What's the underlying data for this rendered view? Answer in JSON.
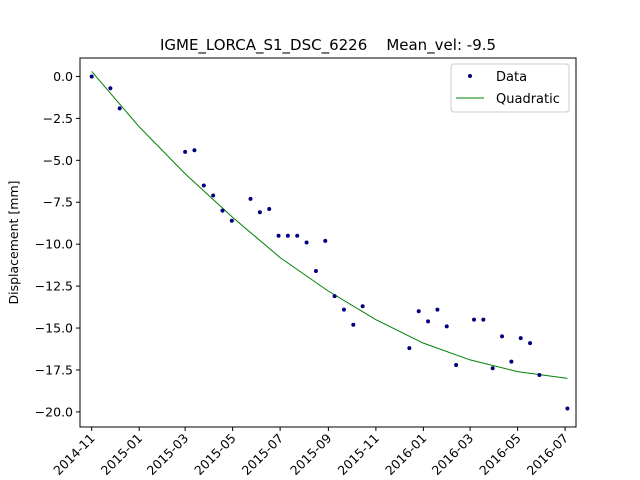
{
  "chart_data": {
    "type": "scatter",
    "title": "IGME_LORCA_S1_DSC_6226    Mean_vel: -9.5",
    "xlabel": "",
    "ylabel": "Displacement [mm]",
    "xlim": [
      "2014-10-17",
      "2016-07-15"
    ],
    "ylim": [
      -20.9,
      1.1
    ],
    "x_ticks": [
      "2014-11",
      "2015-01",
      "2015-03",
      "2015-05",
      "2015-07",
      "2015-09",
      "2015-11",
      "2016-01",
      "2016-03",
      "2016-05",
      "2016-07"
    ],
    "y_ticks": [
      0.0,
      -2.5,
      -5.0,
      -7.5,
      -10.0,
      -12.5,
      -15.0,
      -17.5,
      -20.0
    ],
    "y_tick_labels": [
      "0.0",
      "−2.5",
      "−5.0",
      "−7.5",
      "−10.0",
      "−12.5",
      "−15.0",
      "−17.5",
      "−20.0"
    ],
    "grid": false,
    "legend_position": "top-right",
    "series": [
      {
        "name": "Data",
        "style": "points",
        "color": "#000080",
        "points": [
          {
            "x": "2014-11-01",
            "y": 0.0
          },
          {
            "x": "2014-11-25",
            "y": -0.7
          },
          {
            "x": "2014-12-07",
            "y": -1.9
          },
          {
            "x": "2015-03-01",
            "y": -4.5
          },
          {
            "x": "2015-03-13",
            "y": -4.4
          },
          {
            "x": "2015-03-25",
            "y": -6.5
          },
          {
            "x": "2015-04-06",
            "y": -7.1
          },
          {
            "x": "2015-04-18",
            "y": -8.0
          },
          {
            "x": "2015-04-30",
            "y": -8.6
          },
          {
            "x": "2015-05-24",
            "y": -7.3
          },
          {
            "x": "2015-06-05",
            "y": -8.1
          },
          {
            "x": "2015-06-17",
            "y": -7.9
          },
          {
            "x": "2015-06-29",
            "y": -9.5
          },
          {
            "x": "2015-07-11",
            "y": -9.5
          },
          {
            "x": "2015-07-23",
            "y": -9.5
          },
          {
            "x": "2015-08-04",
            "y": -9.9
          },
          {
            "x": "2015-08-16",
            "y": -11.6
          },
          {
            "x": "2015-08-28",
            "y": -9.8
          },
          {
            "x": "2015-09-09",
            "y": -13.1
          },
          {
            "x": "2015-09-21",
            "y": -13.9
          },
          {
            "x": "2015-10-03",
            "y": -14.8
          },
          {
            "x": "2015-10-15",
            "y": -13.7
          },
          {
            "x": "2015-12-14",
            "y": -16.2
          },
          {
            "x": "2015-12-26",
            "y": -14.0
          },
          {
            "x": "2016-01-07",
            "y": -14.6
          },
          {
            "x": "2016-01-19",
            "y": -13.9
          },
          {
            "x": "2016-01-31",
            "y": -14.9
          },
          {
            "x": "2016-02-12",
            "y": -17.2
          },
          {
            "x": "2016-03-06",
            "y": -14.5
          },
          {
            "x": "2016-03-18",
            "y": -14.5
          },
          {
            "x": "2016-03-30",
            "y": -17.4
          },
          {
            "x": "2016-04-11",
            "y": -15.5
          },
          {
            "x": "2016-04-23",
            "y": -17.0
          },
          {
            "x": "2016-05-05",
            "y": -15.6
          },
          {
            "x": "2016-05-17",
            "y": -15.9
          },
          {
            "x": "2016-05-29",
            "y": -17.8
          },
          {
            "x": "2016-07-04",
            "y": -19.8
          }
        ]
      },
      {
        "name": "Quadratic",
        "style": "line",
        "color": "#008000",
        "points": [
          {
            "x": "2014-11-01",
            "y": 0.3
          },
          {
            "x": "2015-01-01",
            "y": -3.0
          },
          {
            "x": "2015-03-01",
            "y": -5.8
          },
          {
            "x": "2015-05-01",
            "y": -8.4
          },
          {
            "x": "2015-07-01",
            "y": -10.8
          },
          {
            "x": "2015-09-01",
            "y": -12.8
          },
          {
            "x": "2015-11-01",
            "y": -14.5
          },
          {
            "x": "2016-01-01",
            "y": -15.9
          },
          {
            "x": "2016-03-01",
            "y": -16.9
          },
          {
            "x": "2016-05-01",
            "y": -17.6
          },
          {
            "x": "2016-07-04",
            "y": -18.0
          }
        ]
      }
    ]
  }
}
